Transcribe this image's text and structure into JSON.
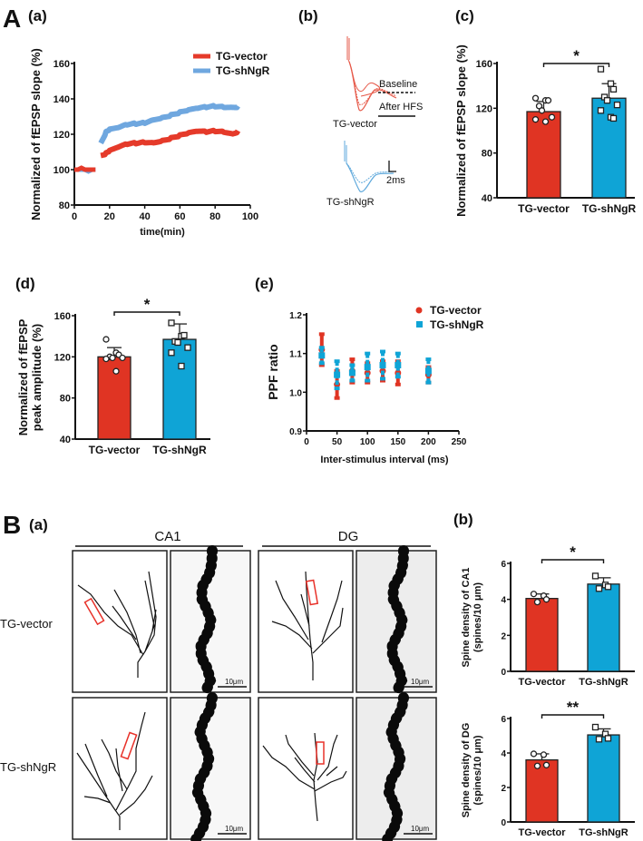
{
  "colors": {
    "vector": "#e03423",
    "shNgR": "#0fa4d6",
    "vector_line": "#e53a2a",
    "shNgR_line": "#6fa7df",
    "roi": "#e8322a"
  },
  "panels": {
    "A": "A",
    "Aa": "(a)",
    "Ab": "(b)",
    "Ac": "(c)",
    "Ad": "(d)",
    "Ae": "(e)",
    "B": "B",
    "Ba": "(a)",
    "Bb": "(b)"
  },
  "traces": {
    "vector_label": "TG-vector",
    "shNgR_label": "TG-shNgR",
    "baseline_label": "Baseline",
    "after_label": "After HFS",
    "scale_label": "2ms"
  },
  "morphology": {
    "regions": [
      "CA1",
      "DG"
    ],
    "rows": [
      "TG-vector",
      "TG-shNgR"
    ],
    "scale_label": "10μm"
  },
  "chart_data": [
    {
      "id": "Aa",
      "type": "line",
      "title": "",
      "xlabel": "time(min)",
      "ylabel": "Normalized of fEPSP slope (%)",
      "xlim": [
        0,
        100
      ],
      "ylim": [
        80,
        160
      ],
      "xticks": [
        0,
        20,
        40,
        60,
        80,
        100
      ],
      "yticks": [
        80,
        100,
        120,
        140,
        160
      ],
      "legend_position": "top-right",
      "series": [
        {
          "name": "TG-vector",
          "baseline_x": [
            0,
            2,
            4,
            6,
            8,
            10,
            12
          ],
          "baseline_y": [
            100,
            100,
            101,
            100,
            100,
            100,
            100
          ],
          "x": [
            15,
            18,
            20,
            25,
            30,
            35,
            40,
            45,
            50,
            55,
            60,
            65,
            70,
            75,
            80,
            85,
            90,
            93
          ],
          "y": [
            108,
            109,
            110,
            112,
            114,
            115,
            116,
            116,
            117,
            118,
            119,
            120,
            121,
            121,
            122,
            122,
            121,
            122
          ]
        },
        {
          "name": "TG-shNgR",
          "baseline_x": [
            0,
            2,
            4,
            6,
            8,
            10,
            12
          ],
          "baseline_y": [
            100,
            100,
            100,
            100,
            99,
            100,
            100
          ],
          "x": [
            15,
            18,
            20,
            25,
            30,
            35,
            40,
            45,
            50,
            55,
            60,
            65,
            70,
            75,
            80,
            85,
            90,
            93
          ],
          "y": [
            115,
            121,
            122,
            123,
            125,
            126,
            127,
            129,
            130,
            131,
            132,
            133,
            134,
            135,
            136,
            136,
            136,
            136
          ]
        }
      ]
    },
    {
      "id": "Ac",
      "type": "bar",
      "ylabel": "Normalized of fEPSP slope (%)",
      "ylim": [
        40,
        160
      ],
      "yticks": [
        40,
        80,
        120,
        160
      ],
      "categories": [
        "TG-vector",
        "TG-shNgR"
      ],
      "values": [
        117,
        129
      ],
      "errors": [
        9,
        13
      ],
      "points": [
        [
          129,
          127,
          127,
          122,
          118,
          112,
          110,
          108
        ],
        [
          155,
          142,
          137,
          130,
          127,
          123,
          118,
          112,
          111
        ]
      ],
      "significance": "*"
    },
    {
      "id": "Ad",
      "type": "bar",
      "ylabel": [
        "Normalized of fEPSP",
        "peak amplitude (%)"
      ],
      "ylim": [
        40,
        160
      ],
      "yticks": [
        40,
        80,
        120,
        160
      ],
      "categories": [
        "TG-vector",
        "TG-shNgR"
      ],
      "values": [
        120,
        137
      ],
      "errors": [
        9,
        15
      ],
      "points": [
        [
          137,
          124,
          122,
          120,
          119,
          119,
          118,
          106
        ],
        [
          153,
          140,
          141,
          135,
          134,
          129,
          124,
          111
        ]
      ],
      "significance": "*"
    },
    {
      "id": "Ae",
      "type": "scatter",
      "xlabel": "Inter-stimulus interval  (ms)",
      "ylabel": "PPF ratio",
      "xlim": [
        0,
        250
      ],
      "ylim": [
        0.9,
        1.2
      ],
      "xticks": [
        0,
        50,
        100,
        150,
        200,
        250
      ],
      "yticks": [
        "0.9",
        "1.0",
        "1.1",
        "1.2"
      ],
      "legend_position": "top-right",
      "series": [
        {
          "name": "TG-vector",
          "x": [
            25,
            50,
            75,
            100,
            125,
            150,
            200
          ],
          "y": [
            1.11,
            1.02,
            1.055,
            1.05,
            1.055,
            1.05,
            1.045
          ],
          "err": [
            0.04,
            0.035,
            0.03,
            0.025,
            0.025,
            0.03,
            0.02
          ]
        },
        {
          "name": "TG-shNgR",
          "x": [
            25,
            50,
            75,
            100,
            125,
            150,
            200
          ],
          "y": [
            1.095,
            1.045,
            1.05,
            1.065,
            1.07,
            1.07,
            1.055
          ],
          "err": [
            0.02,
            0.035,
            0.02,
            0.035,
            0.035,
            0.03,
            0.03
          ]
        }
      ]
    },
    {
      "id": "Bb1",
      "type": "bar",
      "ylabel": [
        "Spine density of CA1",
        "(spines/10 μm)"
      ],
      "ylim": [
        0,
        6
      ],
      "yticks": [
        0,
        2,
        4,
        6
      ],
      "categories": [
        "TG-vector",
        "TG-shNgR"
      ],
      "values": [
        4.05,
        4.85
      ],
      "errors": [
        0.25,
        0.35
      ],
      "points": [
        [
          4.3,
          4.2,
          4.0,
          3.85
        ],
        [
          5.3,
          4.8,
          4.7,
          4.6
        ]
      ],
      "significance": "*"
    },
    {
      "id": "Bb2",
      "type": "bar",
      "ylabel": [
        "Spine density of DG",
        "(spines/10 μm)"
      ],
      "ylim": [
        0,
        6
      ],
      "yticks": [
        0,
        2,
        4,
        6
      ],
      "categories": [
        "TG-vector",
        "TG-shNgR"
      ],
      "values": [
        3.6,
        5.05
      ],
      "errors": [
        0.35,
        0.35
      ],
      "points": [
        [
          3.95,
          3.9,
          3.3,
          3.25
        ],
        [
          5.5,
          5.1,
          4.85,
          4.8
        ]
      ],
      "significance": "**"
    }
  ]
}
